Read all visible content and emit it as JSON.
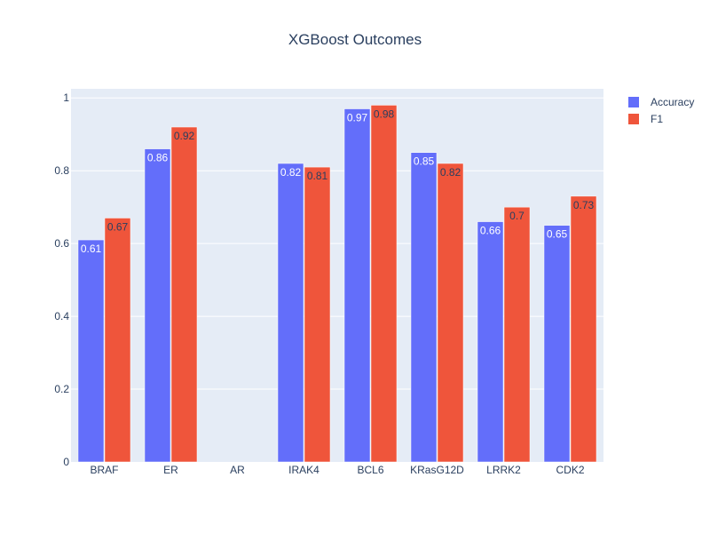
{
  "chart_data": {
    "type": "bar",
    "title": "XGBoost Outcomes",
    "xlabel": "",
    "ylabel": "",
    "categories": [
      "BRAF",
      "ER",
      "AR",
      "IRAK4",
      "BCL6",
      "KRasG12D",
      "LRRK2",
      "CDK2"
    ],
    "series": [
      {
        "name": "Accuracy",
        "color": "#636efa",
        "values": [
          0.61,
          0.86,
          null,
          0.82,
          0.97,
          0.85,
          0.66,
          0.65
        ],
        "labels": [
          "0.61",
          "0.86",
          "",
          "0.82",
          "0.97",
          "0.85",
          "0.66",
          "0.65"
        ]
      },
      {
        "name": "F1",
        "color": "#ef553b",
        "values": [
          0.67,
          0.92,
          null,
          0.81,
          0.98,
          0.82,
          0.7,
          0.73
        ],
        "labels": [
          "0.67",
          "0.92",
          "",
          "0.81",
          "0.98",
          "0.82",
          "0.7",
          "0.73"
        ]
      }
    ],
    "ylim": [
      0,
      1.025
    ],
    "yticks": [
      0,
      0.2,
      0.4,
      0.6,
      0.8,
      1
    ],
    "ytick_labels": [
      "0",
      "0.2",
      "0.4",
      "0.6",
      "0.8",
      "1"
    ],
    "grid": true,
    "legend_position": "top-right",
    "plot_background": "#e5ecf6"
  }
}
